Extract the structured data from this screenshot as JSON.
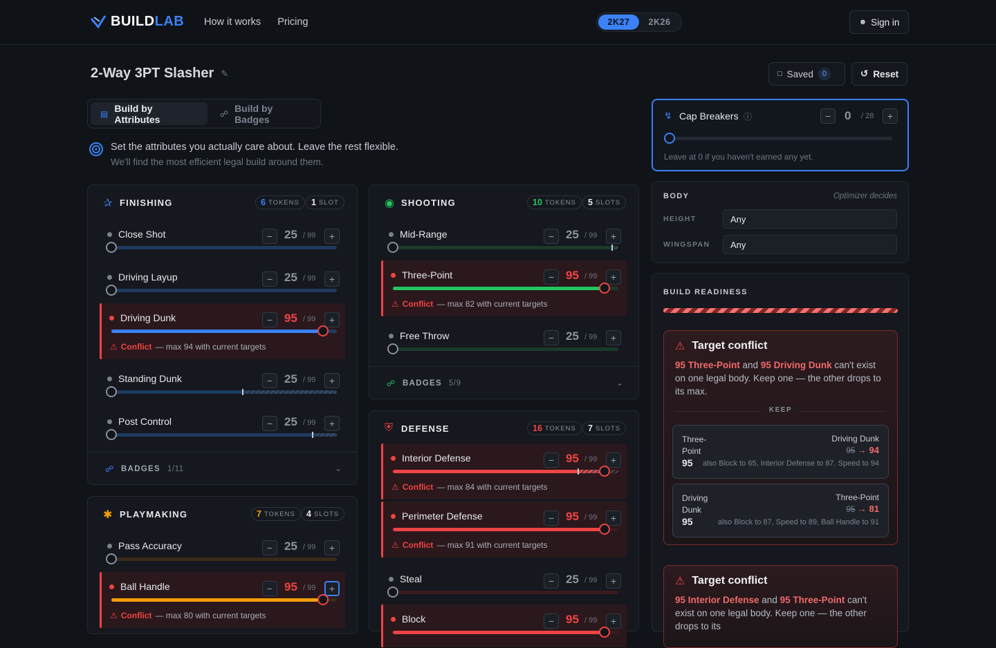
{
  "brand": {
    "name_a": "BUILD",
    "name_b": "LAB"
  },
  "nav": [
    "How it works",
    "Pricing"
  ],
  "versions": [
    "2K27",
    "2K26"
  ],
  "signin": "Sign in",
  "build_title": "2-Way 3PT Slasher",
  "saved": {
    "label": "Saved",
    "count": "0"
  },
  "reset": "Reset",
  "mode_tabs": [
    "Build by Attributes",
    "Build by Badges"
  ],
  "intro": {
    "line1": "Set the attributes you actually care about. Leave the rest flexible.",
    "line2": "We'll find the most efficient legal build around them."
  },
  "colors": {
    "accent": "#3b82f6",
    "conflict": "#ef4444",
    "finishing": "#3b82f6",
    "shooting": "#22c55e",
    "playmaking": "#f59e0b",
    "defense": "#ef4444"
  },
  "common": {
    "max": "/ 99",
    "conflict": "Conflict",
    "badges": "BADGES",
    "minus": "−",
    "plus": "+"
  },
  "finishing": {
    "name": "FINISHING",
    "tokens": "6",
    "tokens_lbl": "TOKENS",
    "slots": "1",
    "slots_lbl": "SLOT",
    "badges": "1/11",
    "rows": [
      {
        "name": "Close Shot",
        "value": "25",
        "fill": 0
      },
      {
        "name": "Driving Layup",
        "value": "25",
        "fill": 0
      },
      {
        "name": "Driving Dunk",
        "value": "95",
        "fill": 0.94,
        "msg": "— max 94 with current targets"
      },
      {
        "name": "Standing Dunk",
        "value": "25",
        "fill": 0,
        "cap": 0.58
      },
      {
        "name": "Post Control",
        "value": "25",
        "fill": 0,
        "cap": 0.89
      }
    ]
  },
  "shooting": {
    "name": "SHOOTING",
    "tokens": "10",
    "tokens_lbl": "TOKENS",
    "slots": "5",
    "slots_lbl": "SLOTS",
    "badges": "5/9",
    "rows": [
      {
        "name": "Mid-Range",
        "value": "25",
        "fill": 0,
        "cap": 0.97
      },
      {
        "name": "Three-Point",
        "value": "95",
        "fill": 0.94,
        "msg": "— max 82 with current targets"
      },
      {
        "name": "Free Throw",
        "value": "25",
        "fill": 0
      }
    ]
  },
  "defense": {
    "name": "DEFENSE",
    "tokens": "16",
    "tokens_lbl": "TOKENS",
    "slots": "7",
    "slots_lbl": "SLOTS",
    "rows": [
      {
        "name": "Interior Defense",
        "value": "95",
        "fill": 0.94,
        "cap": 0.82,
        "msg": "— max 84 with current targets"
      },
      {
        "name": "Perimeter Defense",
        "value": "95",
        "fill": 0.94,
        "msg": "— max 91 with current targets"
      },
      {
        "name": "Steal",
        "value": "25",
        "fill": 0
      },
      {
        "name": "Block",
        "value": "95",
        "fill": 0.94
      }
    ]
  },
  "playmaking": {
    "name": "PLAYMAKING",
    "tokens": "7",
    "tokens_lbl": "TOKENS",
    "slots": "4",
    "slots_lbl": "SLOTS",
    "rows": [
      {
        "name": "Pass Accuracy",
        "value": "25",
        "fill": 0
      },
      {
        "name": "Ball Handle",
        "value": "95",
        "fill": 0.94,
        "msg": "— max 80 with current targets"
      }
    ]
  },
  "cap_breakers": {
    "label": "Cap Breakers",
    "value": "0",
    "max": "/ 28",
    "hint": "Leave at 0 if you haven't earned any yet."
  },
  "body": {
    "label": "BODY",
    "note": "Optimizer decides",
    "height_lbl": "HEIGHT",
    "height": "Any",
    "wingspan_lbl": "WINGSPAN",
    "wingspan": "Any"
  },
  "readiness": {
    "label": "BUILD READINESS",
    "c1": {
      "title": "Target conflict",
      "a": "95 Three-Point",
      "and": " and ",
      "b": "95 Driving Dunk",
      "rest": " can't exist on one legal body. Keep one — the other drops to its max.",
      "keep": "KEEP",
      "o1": {
        "name": "Three-Point",
        "val": "95",
        "other": "Driving Dunk",
        "from": "95",
        "to": "→ 94",
        "note": "also Block to 65, Interior Defense to 87, Speed to 94"
      },
      "o2": {
        "name": "Driving Dunk",
        "val": "95",
        "other": "Three-Point",
        "from": "95",
        "to": "→ 81",
        "note": "also Block to 87, Speed to 89, Ball Handle to 91"
      }
    },
    "c2": {
      "title": "Target conflict",
      "a": "95 Interior Defense",
      "and": " and ",
      "b": "95 Three-Point",
      "rest": " can't exist on one legal body. Keep one — the other drops to its"
    }
  }
}
